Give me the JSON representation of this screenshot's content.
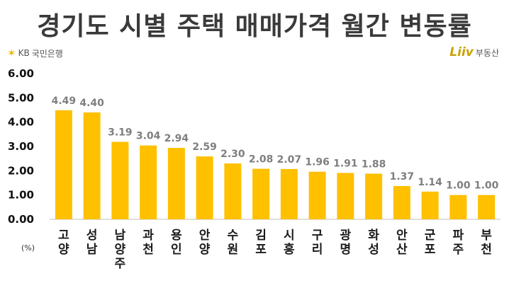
{
  "page": {
    "title": "경기도 시별 주택 매매가격 월간 변동률",
    "logo_left": {
      "brand": "KB",
      "text": "국민은행",
      "icon": "kb-star-icon"
    },
    "logo_right": {
      "brand": "Liiv",
      "text": "부동산"
    },
    "unit": "(%)"
  },
  "colors": {
    "bar": "#ffc000",
    "value_label": "#7f7f7f",
    "axis": "#bfbfbf"
  },
  "chart_data": {
    "type": "bar",
    "title": "경기도 시별 주택 매매가격 월간 변동률",
    "ylabel": "(%)",
    "ylim": [
      0,
      6
    ],
    "yticks": [
      "0.00",
      "1.00",
      "2.00",
      "3.00",
      "4.00",
      "5.00",
      "6.00"
    ],
    "grid": false,
    "categories": [
      "고양",
      "성남",
      "남양주",
      "과천",
      "용인",
      "안양",
      "수원",
      "김포",
      "시흥",
      "구리",
      "광명",
      "화성",
      "안산",
      "군포",
      "파주",
      "부천"
    ],
    "values": [
      4.49,
      4.4,
      3.19,
      3.04,
      2.94,
      2.59,
      2.3,
      2.08,
      2.07,
      1.96,
      1.91,
      1.88,
      1.37,
      1.14,
      1.0,
      1.0
    ],
    "value_labels": [
      "4.49",
      "4.40",
      "3.19",
      "3.04",
      "2.94",
      "2.59",
      "2.30",
      "2.08",
      "2.07",
      "1.96",
      "1.91",
      "1.88",
      "1.37",
      "1.14",
      "1.00",
      "1.00"
    ]
  }
}
